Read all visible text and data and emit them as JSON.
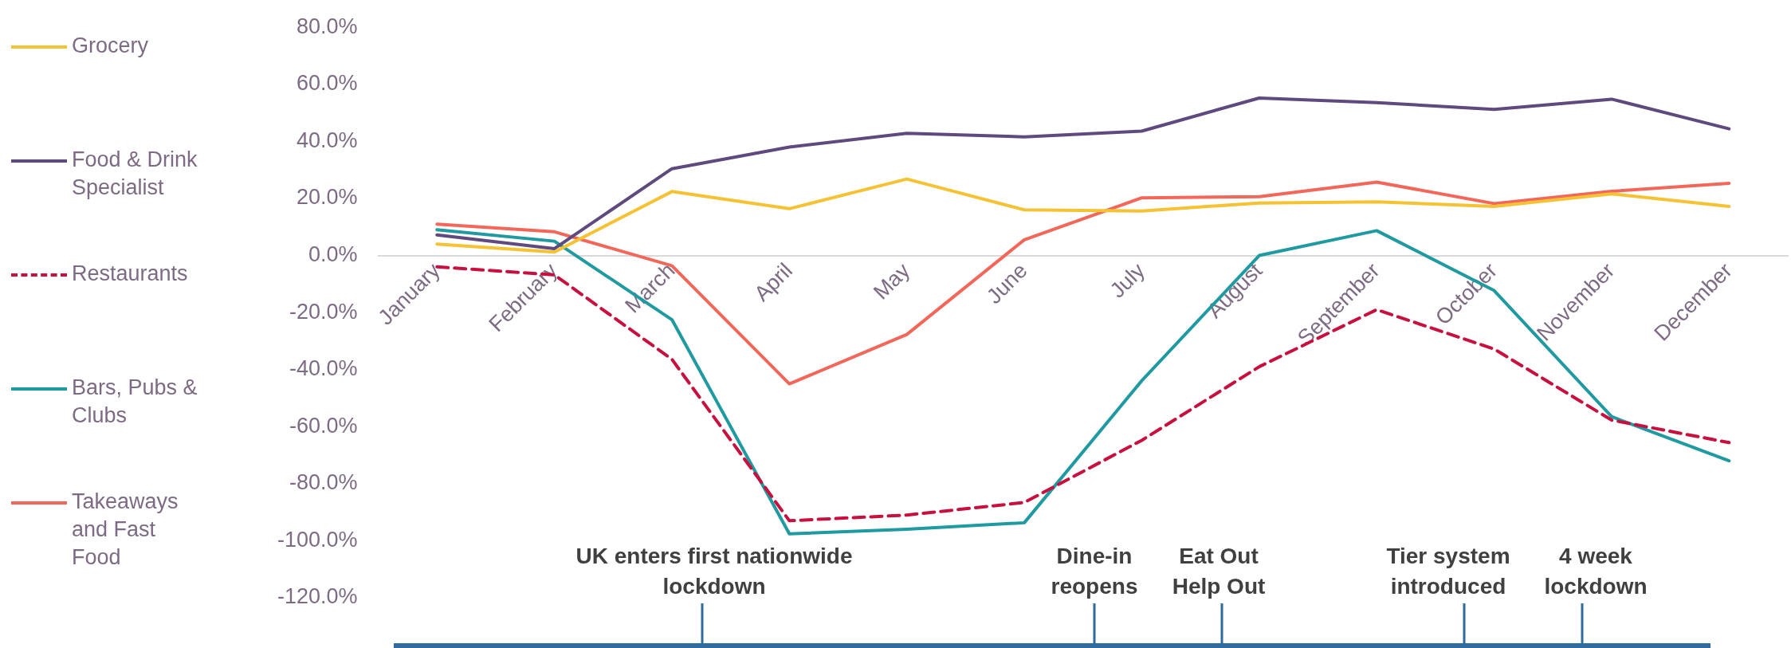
{
  "chart_data": {
    "type": "line",
    "categories": [
      "January",
      "February",
      "March",
      "April",
      "May",
      "June",
      "July",
      "August",
      "September",
      "October",
      "November",
      "December"
    ],
    "series": [
      {
        "name": "Grocery",
        "color": "#f5c234",
        "values": [
          4,
          1.2,
          22.4,
          16.4,
          26.8,
          16,
          15.6,
          18.4,
          18.8,
          17.2,
          21.6,
          17.2
        ]
      },
      {
        "name": "Food & Drink Specialist",
        "color": "#5e4a7e",
        "values": [
          7.2,
          2.4,
          30.4,
          38,
          42.8,
          41.6,
          43.6,
          55.2,
          53.6,
          51.2,
          54.8,
          44.4
        ]
      },
      {
        "name": "Restaurants",
        "color": "#c8103e",
        "line_style": "dashed",
        "values": [
          -4,
          -6.8,
          -36.4,
          -93,
          -91,
          -86.6,
          -64.8,
          -39,
          -19,
          -32.8,
          -57.7,
          -65.6
        ]
      },
      {
        "name": "Bars, Pubs & Clubs",
        "color": "#1f9aa0",
        "values": [
          9,
          5,
          -22.5,
          -97.6,
          -96,
          -93.7,
          -43.9,
          0,
          8.7,
          -12.3,
          -56.5,
          -72
        ]
      },
      {
        "name": "Takeaways and Fast Food",
        "color": "#f2675a",
        "values": [
          11,
          8.3,
          -3.6,
          -45,
          -27.7,
          5.5,
          20.2,
          20.6,
          25.7,
          18.2,
          22.5,
          25.3
        ]
      }
    ],
    "ylim": [
      -120,
      80
    ],
    "yticks": [
      {
        "value": -120,
        "label": "-120.0%"
      },
      {
        "value": -100,
        "label": "-100.0%"
      },
      {
        "value": -80,
        "label": "-80.0%"
      },
      {
        "value": -60,
        "label": "-60.0%"
      },
      {
        "value": -40,
        "label": "-40.0%"
      },
      {
        "value": -20,
        "label": "-20.0%"
      },
      {
        "value": 0,
        "label": "0.0%"
      },
      {
        "value": 20,
        "label": "20.0%"
      },
      {
        "value": 40,
        "label": "40.0%"
      },
      {
        "value": 60,
        "label": "60.0%"
      },
      {
        "value": 80,
        "label": "80.0%"
      }
    ],
    "annotations": [
      "UK enters first nationwide lockdown",
      "Dine-in reopens",
      "Eat Out Help Out",
      "Tier system introduced",
      "4 week lockdown"
    ],
    "legend": "left",
    "grid": false,
    "marker": "none"
  }
}
